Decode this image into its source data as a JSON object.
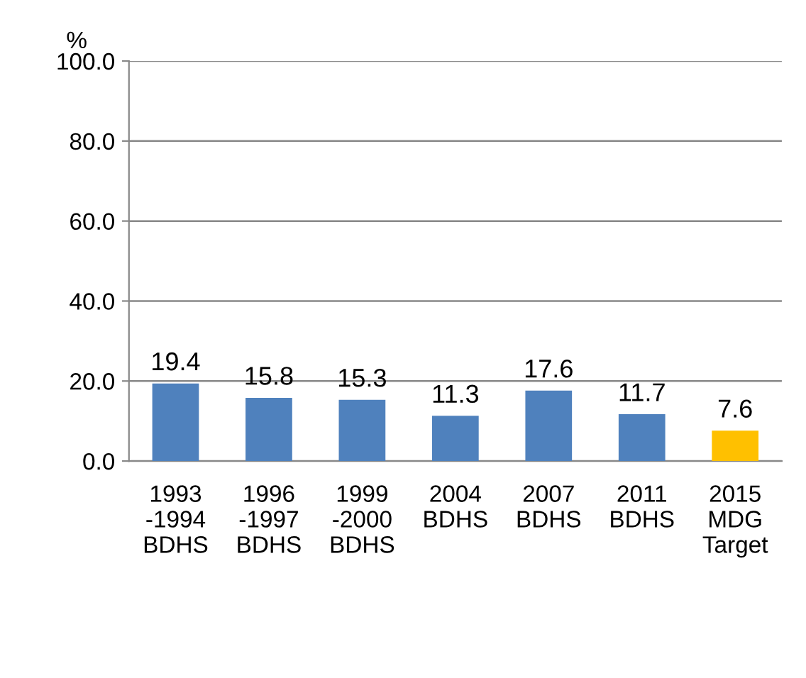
{
  "chart_data": {
    "type": "bar",
    "ylabel": "%",
    "categories": [
      "1993\n-1994\nBDHS",
      "1996\n-1997\nBDHS",
      "1999\n-2000\nBDHS",
      "2004\nBDHS",
      "2007\nBDHS",
      "2011\nBDHS",
      "2015\nMDG\nTarget"
    ],
    "values": [
      19.4,
      15.8,
      15.3,
      11.3,
      17.6,
      11.7,
      7.6
    ],
    "colors": [
      "#4f81bd",
      "#4f81bd",
      "#4f81bd",
      "#4f81bd",
      "#4f81bd",
      "#4f81bd",
      "#ffc000"
    ],
    "ylim": [
      0,
      100
    ],
    "yticks": [
      {
        "value": 0,
        "label": "0.0"
      },
      {
        "value": 20,
        "label": "20.0"
      },
      {
        "value": 40,
        "label": "40.0"
      },
      {
        "value": 60,
        "label": "60.0"
      },
      {
        "value": 80,
        "label": "80.0"
      },
      {
        "value": 100,
        "label": "100.0"
      }
    ],
    "grid": "y",
    "data_labels": true
  }
}
